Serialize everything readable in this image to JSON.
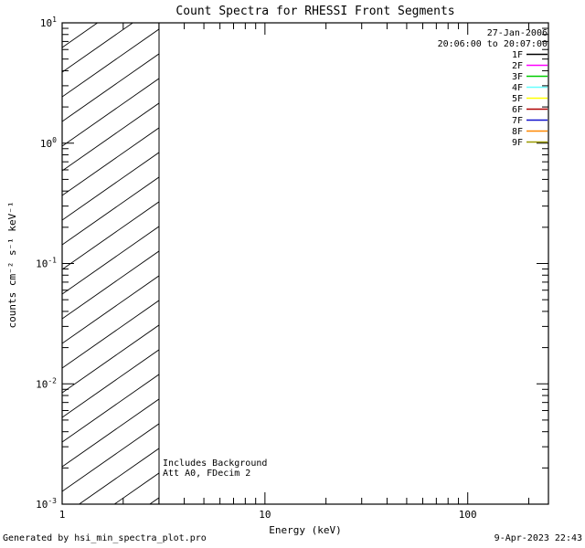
{
  "title": "Count Spectra for RHESSI Front Segments",
  "footer": {
    "left": "Generated by hsi_min_spectra_plot.pro",
    "right": "9-Apr-2023 22:43"
  },
  "chart_data": {
    "type": "line",
    "title": "Count Spectra for RHESSI Front Segments",
    "xlabel": "Energy (keV)",
    "ylabel": "counts cm⁻² s⁻¹ keV⁻¹",
    "x_scale": "log",
    "y_scale": "log",
    "xlim": [
      1,
      250
    ],
    "ylim": [
      0.001,
      10
    ],
    "x_ticks": [
      1,
      10,
      100
    ],
    "x_tick_labels": [
      "1",
      "10",
      "100"
    ],
    "y_ticks": [
      10,
      1,
      0.1,
      0.01,
      0.001
    ],
    "y_tick_labels": [
      "10¹",
      "10⁰",
      "10⁻¹",
      "10⁻²",
      "10⁻³"
    ],
    "grid": false,
    "legend_position": "top-right-inside",
    "legend": {
      "date": "27-Jan-2006",
      "time_range": "20:06:00 to 20:07:00",
      "entries": [
        {
          "label": "1F",
          "color": "#000000"
        },
        {
          "label": "2F",
          "color": "#ff00ff"
        },
        {
          "label": "3F",
          "color": "#00cc00"
        },
        {
          "label": "4F",
          "color": "#66ffff"
        },
        {
          "label": "5F",
          "color": "#ffff00"
        },
        {
          "label": "6F",
          "color": "#b00000"
        },
        {
          "label": "7F",
          "color": "#1111cc"
        },
        {
          "label": "8F",
          "color": "#ff8800"
        },
        {
          "label": "9F",
          "color": "#999900"
        }
      ]
    },
    "annotations": [
      "Includes Background",
      "Att A0, FDecim 2"
    ],
    "hatched_region": {
      "x_start": 1,
      "x_end": 3,
      "style": "diagonal-hatch"
    },
    "series": []
  }
}
